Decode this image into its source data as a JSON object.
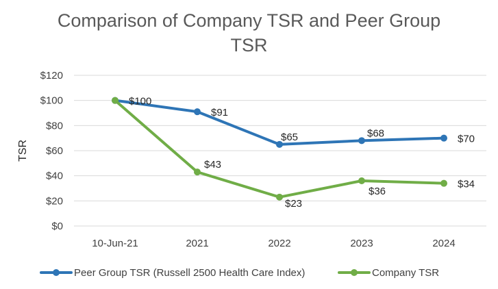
{
  "chart_data": {
    "type": "line",
    "title_lines": [
      "Comparison of Company TSR and Peer Group",
      "TSR"
    ],
    "xlabel": "",
    "ylabel": "TSR",
    "ylim": [
      0,
      120
    ],
    "y_step": 20,
    "y_tick_labels": [
      "$0",
      "$20",
      "$40",
      "$60",
      "$80",
      "$100",
      "$120"
    ],
    "grid": true,
    "categories": [
      "10-Jun-21",
      "2021",
      "2022",
      "2023",
      "2024"
    ],
    "series": [
      {
        "name": "Peer Group TSR (Russell 2500 Health Care Index)",
        "color": "#2E75B6",
        "values": [
          100,
          91,
          65,
          68,
          70
        ],
        "data_labels": [
          "$100",
          "$91",
          "$65",
          "$68",
          "$70"
        ]
      },
      {
        "name": "Company TSR",
        "color": "#70AD47",
        "values": [
          100,
          43,
          23,
          36,
          34
        ],
        "data_labels": [
          "",
          "$43",
          "$23",
          "$36",
          "$34"
        ]
      }
    ],
    "legend_position": "bottom"
  }
}
